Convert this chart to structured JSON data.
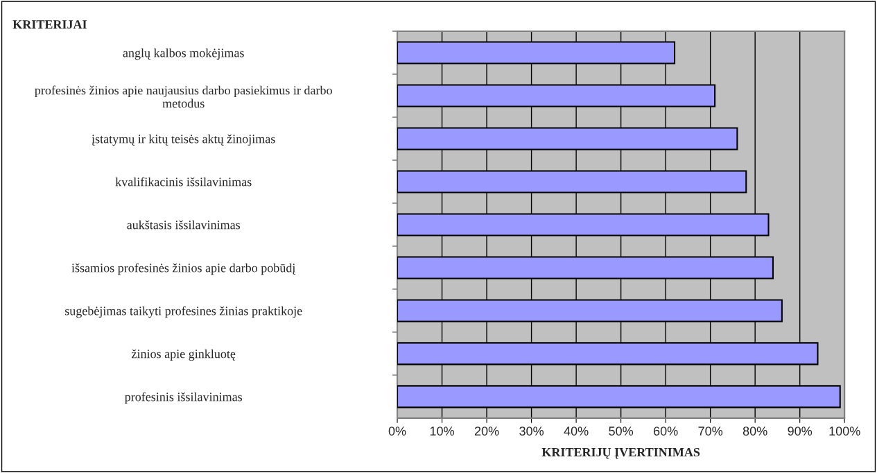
{
  "chart_data": {
    "type": "bar",
    "orientation": "horizontal",
    "ylabel": "KRITERIJAI",
    "xlabel": "KRITERIJŲ ĮVERTINIMAS",
    "categories": [
      "anglų kalbos mokėjimas",
      "profesinės žinios apie naujausius darbo pasiekimus ir darbo\nmetodus",
      "įstatymų ir kitų teisės aktų žinojimas",
      "kvalifikacinis išsilavinimas",
      "aukštasis išsilavinimas",
      "išsamios profesinės žinios apie darbo pobūdį",
      "sugebėjimas taikyti profesines žinias praktikoje",
      "žinios apie ginkluotę",
      "profesinis išsilavinimas"
    ],
    "values": [
      62,
      71,
      76,
      78,
      83,
      84,
      86,
      94,
      99
    ],
    "color": "#9999ff",
    "xlim": [
      0,
      100
    ],
    "xticks": [
      {
        "value": 0,
        "label": "0%"
      },
      {
        "value": 10,
        "label": "10%"
      },
      {
        "value": 20,
        "label": "20%"
      },
      {
        "value": 30,
        "label": "30%"
      },
      {
        "value": 40,
        "label": "40%"
      },
      {
        "value": 50,
        "label": "50%"
      },
      {
        "value": 60,
        "label": "60%"
      },
      {
        "value": 70,
        "label": "70%"
      },
      {
        "value": 80,
        "label": "80%"
      },
      {
        "value": 90,
        "label": "90%"
      },
      {
        "value": 100,
        "label": "100%"
      }
    ],
    "grid": "x",
    "legend": false
  }
}
